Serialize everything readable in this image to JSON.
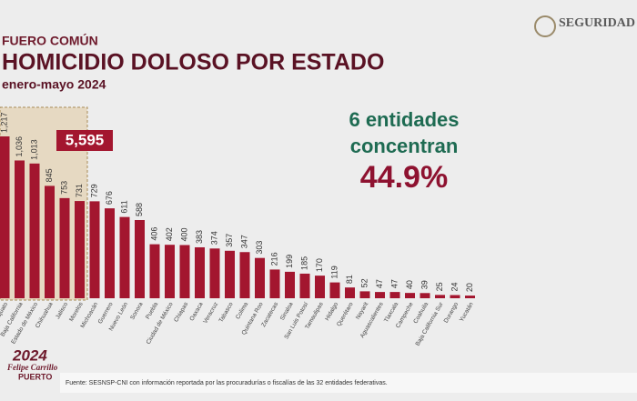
{
  "header": {
    "logo": "SEGURIDAD"
  },
  "chart_data": {
    "type": "bar",
    "supertitle": "FUERO COMÚN",
    "title": "HOMICIDIO DOLOSO POR ESTADO",
    "subtitle": "enero-mayo 2024",
    "categories": [
      "Guanajuato",
      "Baja California",
      "Estado de México",
      "Chihuahua",
      "Jalisco",
      "Morelos",
      "Michoacán",
      "Guerrero",
      "Nuevo León",
      "Sonora",
      "Puebla",
      "Ciudad de México",
      "Chiapas",
      "Oaxaca",
      "Veracruz",
      "Tabasco",
      "Colima",
      "Quintana Roo",
      "Zacatecas",
      "Sinaloa",
      "San Luis Potosí",
      "Tamaulipas",
      "Hidalgo",
      "Querétaro",
      "Nayarit",
      "Aguascalientes",
      "Tlaxcala",
      "Campeche",
      "Coahuila",
      "Baja California Sur",
      "Durango",
      "Yucatán"
    ],
    "values": [
      1217,
      1036,
      1013,
      845,
      753,
      731,
      729,
      676,
      611,
      588,
      406,
      402,
      400,
      383,
      374,
      357,
      347,
      303,
      216,
      199,
      185,
      170,
      119,
      81,
      52,
      47,
      47,
      40,
      39,
      25,
      24,
      20
    ],
    "value_labels": [
      "1,217",
      "1,036",
      "1,013",
      "845",
      "753",
      "731",
      "729",
      "676",
      "611",
      "588",
      "406",
      "402",
      "400",
      "383",
      "374",
      "357",
      "347",
      "303",
      "216",
      "199",
      "185",
      "170",
      "119",
      "81",
      "52",
      "47",
      "47",
      "40",
      "39",
      "25",
      "24",
      "20"
    ],
    "color": "#a3162f",
    "highlight_total": "5,595",
    "annotation": {
      "line1": "6 entidades",
      "line2": "concentran",
      "value": "44.9%"
    }
  },
  "footer": {
    "source": "Fuente: SESNSP-CNI con información reportada por las procuradurías o fiscalías de las 32 entidades federativas.",
    "logo_year": "2024",
    "logo_name": "Felipe Carrillo",
    "logo_place": "PUERTO"
  }
}
